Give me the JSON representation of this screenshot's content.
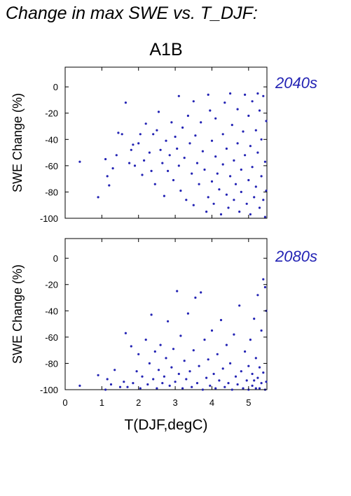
{
  "title": "Change in max SWE vs. T_DJF:",
  "scenario": "A1B",
  "colors": {
    "points": "#2323b4",
    "label": "#2323b4"
  },
  "chart_data": [
    {
      "type": "scatter",
      "label": "2040s",
      "ylabel": "SWE Change (%)",
      "xlim": [
        0,
        5.5
      ],
      "ylim": [
        -100,
        15
      ],
      "yticks": [
        "0",
        "-20",
        "-40",
        "-60",
        "-80",
        "-100"
      ],
      "grid": false,
      "points": [
        [
          0.4,
          -57
        ],
        [
          0.9,
          -84
        ],
        [
          1.1,
          -55
        ],
        [
          1.15,
          -68
        ],
        [
          1.2,
          -75
        ],
        [
          1.3,
          -62
        ],
        [
          1.4,
          -52
        ],
        [
          1.45,
          -35
        ],
        [
          1.55,
          -36
        ],
        [
          1.65,
          -12
        ],
        [
          1.75,
          -58
        ],
        [
          1.8,
          -48
        ],
        [
          1.85,
          -44
        ],
        [
          1.9,
          -60
        ],
        [
          2.0,
          -43
        ],
        [
          2.05,
          -36
        ],
        [
          2.1,
          -67
        ],
        [
          2.15,
          -56
        ],
        [
          2.2,
          -28
        ],
        [
          2.3,
          -50
        ],
        [
          2.35,
          -64
        ],
        [
          2.4,
          -36
        ],
        [
          2.45,
          -74
        ],
        [
          2.5,
          -33
        ],
        [
          2.55,
          -19
        ],
        [
          2.6,
          -48
        ],
        [
          2.65,
          -58
        ],
        [
          2.7,
          -83
        ],
        [
          2.75,
          -41
        ],
        [
          2.8,
          -64
        ],
        [
          2.85,
          -52
        ],
        [
          2.9,
          -27
        ],
        [
          2.95,
          -71
        ],
        [
          3.0,
          -38
        ],
        [
          3.05,
          -47
        ],
        [
          3.1,
          -7
        ],
        [
          3.1,
          -60
        ],
        [
          3.15,
          -79
        ],
        [
          3.2,
          -31
        ],
        [
          3.25,
          -54
        ],
        [
          3.3,
          -86
        ],
        [
          3.35,
          -22
        ],
        [
          3.4,
          -43
        ],
        [
          3.45,
          -66
        ],
        [
          3.5,
          -11
        ],
        [
          3.5,
          -90
        ],
        [
          3.55,
          -37
        ],
        [
          3.6,
          -58
        ],
        [
          3.65,
          -74
        ],
        [
          3.7,
          -27
        ],
        [
          3.75,
          -49
        ],
        [
          3.8,
          -63
        ],
        [
          3.85,
          -95
        ],
        [
          3.9,
          -6
        ],
        [
          3.9,
          -84
        ],
        [
          3.95,
          -18
        ],
        [
          4.0,
          -41
        ],
        [
          4.0,
          -72
        ],
        [
          4.05,
          -89
        ],
        [
          4.1,
          -24
        ],
        [
          4.1,
          -53
        ],
        [
          4.15,
          -66
        ],
        [
          4.2,
          -78
        ],
        [
          4.25,
          -97
        ],
        [
          4.3,
          -36
        ],
        [
          4.3,
          -59
        ],
        [
          4.35,
          -12
        ],
        [
          4.4,
          -47
        ],
        [
          4.4,
          -82
        ],
        [
          4.45,
          -92
        ],
        [
          4.5,
          -5
        ],
        [
          4.5,
          -68
        ],
        [
          4.55,
          -29
        ],
        [
          4.6,
          -56
        ],
        [
          4.6,
          -86
        ],
        [
          4.65,
          -74
        ],
        [
          4.7,
          -17
        ],
        [
          4.7,
          -43
        ],
        [
          4.75,
          -95
        ],
        [
          4.8,
          -63
        ],
        [
          4.8,
          -80
        ],
        [
          4.85,
          -34
        ],
        [
          4.9,
          -6
        ],
        [
          4.9,
          -52
        ],
        [
          4.95,
          -89
        ],
        [
          5.0,
          -22
        ],
        [
          5.0,
          -71
        ],
        [
          5.05,
          -45
        ],
        [
          5.05,
          -97
        ],
        [
          5.1,
          -11
        ],
        [
          5.1,
          -61
        ],
        [
          5.15,
          -84
        ],
        [
          5.2,
          -33
        ],
        [
          5.2,
          -76
        ],
        [
          5.25,
          -5
        ],
        [
          5.25,
          -50
        ],
        [
          5.3,
          -92
        ],
        [
          5.3,
          -18
        ],
        [
          5.35,
          -68
        ],
        [
          5.35,
          -40
        ],
        [
          5.4,
          -86
        ],
        [
          5.4,
          -7
        ],
        [
          5.45,
          -57
        ],
        [
          5.45,
          -99
        ],
        [
          5.48,
          -26
        ],
        [
          5.48,
          -79
        ]
      ]
    },
    {
      "type": "scatter",
      "label": "2080s",
      "ylabel": "SWE Change (%)",
      "xlabel": "T(DJF,degC)",
      "xlim": [
        0,
        5.5
      ],
      "ylim": [
        -100,
        15
      ],
      "xticks": [
        "0",
        "1",
        "2",
        "3",
        "4",
        "5"
      ],
      "yticks": [
        "0",
        "-20",
        "-40",
        "-60",
        "-80",
        "-100"
      ],
      "grid": false,
      "points": [
        [
          0.4,
          -97
        ],
        [
          0.9,
          -89
        ],
        [
          1.1,
          -100
        ],
        [
          1.15,
          -92
        ],
        [
          1.25,
          -96
        ],
        [
          1.35,
          -85
        ],
        [
          1.5,
          -98
        ],
        [
          1.6,
          -94
        ],
        [
          1.65,
          -57
        ],
        [
          1.7,
          -98
        ],
        [
          1.8,
          -67
        ],
        [
          1.85,
          -95
        ],
        [
          1.95,
          -86
        ],
        [
          2.0,
          -73
        ],
        [
          2.05,
          -99
        ],
        [
          2.1,
          -90
        ],
        [
          2.2,
          -62
        ],
        [
          2.25,
          -96
        ],
        [
          2.3,
          -80
        ],
        [
          2.35,
          -43
        ],
        [
          2.4,
          -92
        ],
        [
          2.45,
          -71
        ],
        [
          2.5,
          -99
        ],
        [
          2.55,
          -85
        ],
        [
          2.6,
          -66
        ],
        [
          2.65,
          -95
        ],
        [
          2.7,
          -90
        ],
        [
          2.75,
          -76
        ],
        [
          2.8,
          -48
        ],
        [
          2.85,
          -97
        ],
        [
          2.9,
          -83
        ],
        [
          2.95,
          -69
        ],
        [
          3.0,
          -94
        ],
        [
          3.05,
          -25
        ],
        [
          3.1,
          -88
        ],
        [
          3.15,
          -59
        ],
        [
          3.2,
          -99
        ],
        [
          3.25,
          -78
        ],
        [
          3.3,
          -92
        ],
        [
          3.35,
          -42
        ],
        [
          3.4,
          -86
        ],
        [
          3.45,
          -98
        ],
        [
          3.5,
          -70
        ],
        [
          3.55,
          -30
        ],
        [
          3.6,
          -95
        ],
        [
          3.65,
          -82
        ],
        [
          3.7,
          -26
        ],
        [
          3.75,
          -100
        ],
        [
          3.8,
          -62
        ],
        [
          3.85,
          -91
        ],
        [
          3.9,
          -77
        ],
        [
          3.95,
          -97
        ],
        [
          4.0,
          -55
        ],
        [
          4.05,
          -88
        ],
        [
          4.1,
          -99
        ],
        [
          4.15,
          -73
        ],
        [
          4.2,
          -93
        ],
        [
          4.25,
          -47
        ],
        [
          4.3,
          -84
        ],
        [
          4.35,
          -98
        ],
        [
          4.4,
          -66
        ],
        [
          4.45,
          -95
        ],
        [
          4.5,
          -80
        ],
        [
          4.55,
          -100
        ],
        [
          4.6,
          -58
        ],
        [
          4.65,
          -90
        ],
        [
          4.7,
          -96
        ],
        [
          4.75,
          -36
        ],
        [
          4.8,
          -86
        ],
        [
          4.85,
          -99
        ],
        [
          4.9,
          -71
        ],
        [
          4.95,
          -93
        ],
        [
          5.0,
          -82
        ],
        [
          5.0,
          -100
        ],
        [
          5.05,
          -62
        ],
        [
          5.1,
          -97
        ],
        [
          5.1,
          -88
        ],
        [
          5.15,
          -46
        ],
        [
          5.15,
          -93
        ],
        [
          5.2,
          -76
        ],
        [
          5.2,
          -99
        ],
        [
          5.25,
          -28
        ],
        [
          5.25,
          -91
        ],
        [
          5.3,
          -83
        ],
        [
          5.3,
          -99
        ],
        [
          5.35,
          -55
        ],
        [
          5.35,
          -95
        ],
        [
          5.4,
          -16
        ],
        [
          5.4,
          -87
        ],
        [
          5.45,
          -100
        ],
        [
          5.45,
          -22
        ],
        [
          5.48,
          -94
        ],
        [
          5.48,
          -40
        ]
      ]
    }
  ]
}
